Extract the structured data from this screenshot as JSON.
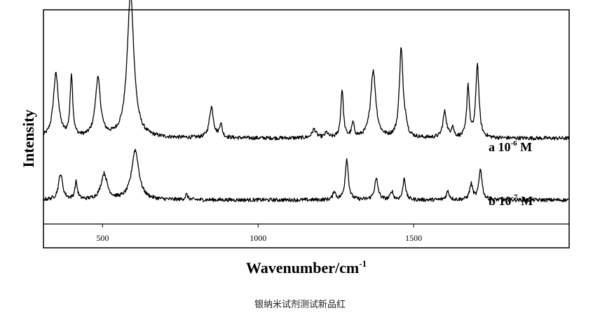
{
  "caption": "银纳米试剂测试新品红",
  "chart_data": {
    "type": "line",
    "xlabel_base": "Wavenumber/cm",
    "xlabel_exp": "-1",
    "ylabel": "Intensity",
    "xlim": [
      310,
      2000
    ],
    "ylim": [
      0,
      1.25
    ],
    "x_ticks": [
      500,
      1000,
      1500
    ],
    "grid": false,
    "series": [
      {
        "name_base": "a 10",
        "name_exp": "-6",
        "name_unit": " M",
        "baseline": 0.5,
        "peaks": [
          {
            "x": 350,
            "height": 0.37,
            "width": 10
          },
          {
            "x": 400,
            "height": 0.36,
            "width": 5
          },
          {
            "x": 485,
            "height": 0.34,
            "width": 10
          },
          {
            "x": 590,
            "height": 0.84,
            "width": 13
          },
          {
            "x": 850,
            "height": 0.18,
            "width": 8
          },
          {
            "x": 880,
            "height": 0.08,
            "width": 5
          },
          {
            "x": 1180,
            "height": 0.05,
            "width": 8
          },
          {
            "x": 1220,
            "height": 0.03,
            "width": 6
          },
          {
            "x": 1270,
            "height": 0.28,
            "width": 5
          },
          {
            "x": 1305,
            "height": 0.08,
            "width": 5
          },
          {
            "x": 1370,
            "height": 0.39,
            "width": 10
          },
          {
            "x": 1460,
            "height": 0.52,
            "width": 7
          },
          {
            "x": 1475,
            "height": 0.06,
            "width": 5
          },
          {
            "x": 1600,
            "height": 0.15,
            "width": 7
          },
          {
            "x": 1625,
            "height": 0.06,
            "width": 5
          },
          {
            "x": 1675,
            "height": 0.3,
            "width": 5
          },
          {
            "x": 1705,
            "height": 0.43,
            "width": 6
          }
        ]
      },
      {
        "name_base": "b 10",
        "name_exp": "-7",
        "name_unit": " M",
        "baseline": 0.14,
        "peaks": [
          {
            "x": 365,
            "height": 0.15,
            "width": 8
          },
          {
            "x": 415,
            "height": 0.1,
            "width": 5
          },
          {
            "x": 505,
            "height": 0.15,
            "width": 12
          },
          {
            "x": 605,
            "height": 0.29,
            "width": 14
          },
          {
            "x": 770,
            "height": 0.03,
            "width": 5
          },
          {
            "x": 1245,
            "height": 0.05,
            "width": 5
          },
          {
            "x": 1285,
            "height": 0.24,
            "width": 6
          },
          {
            "x": 1380,
            "height": 0.12,
            "width": 7
          },
          {
            "x": 1430,
            "height": 0.05,
            "width": 5
          },
          {
            "x": 1470,
            "height": 0.13,
            "width": 5
          },
          {
            "x": 1610,
            "height": 0.05,
            "width": 6
          },
          {
            "x": 1685,
            "height": 0.09,
            "width": 6
          },
          {
            "x": 1715,
            "height": 0.18,
            "width": 6
          }
        ]
      }
    ]
  }
}
